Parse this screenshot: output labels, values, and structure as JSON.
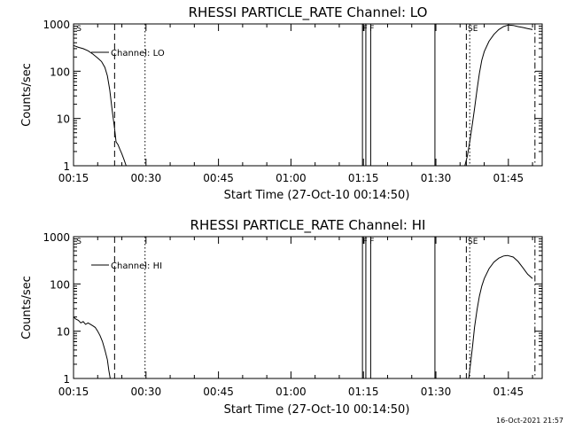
{
  "footer": {
    "timestamp": "16-Oct-2021 21:57"
  },
  "chart_data": [
    {
      "type": "line",
      "title": "RHESSI PARTICLE_RATE Channel: LO",
      "xlabel": "Start Time (27-Oct-10 00:14:50)",
      "ylabel": "Counts/sec",
      "y_scale": "log",
      "xlim_min": [
        15.0,
        112.0
      ],
      "ylim": [
        1,
        1000
      ],
      "x_ticks": [
        "00:15",
        "00:30",
        "00:45",
        "01:00",
        "01:15",
        "01:30",
        "01:45"
      ],
      "x_tick_minutes": [
        15,
        30,
        45,
        60,
        75,
        90,
        105
      ],
      "y_ticks": [
        "1",
        "10",
        "100",
        "1000"
      ],
      "y_tick_values": [
        1,
        10,
        100,
        1000
      ],
      "legend": "Channel: LO",
      "legend_position": "top-left",
      "flag_labels": [
        "S",
        "F",
        "F",
        "SE"
      ],
      "vlines_min": [
        {
          "x": 23.5,
          "style": "dashed"
        },
        {
          "x": 29.8,
          "style": "dotted"
        },
        {
          "x": 74.8,
          "style": "solid"
        },
        {
          "x": 75.5,
          "style": "solid"
        },
        {
          "x": 76.5,
          "style": "solid"
        },
        {
          "x": 89.8,
          "style": "solid"
        },
        {
          "x": 96.3,
          "style": "dashed"
        },
        {
          "x": 97.0,
          "style": "dotted"
        },
        {
          "x": 110.5,
          "style": "dashdot"
        }
      ],
      "series": [
        {
          "segments": [
            {
              "x_min": [
                15.0,
                16.0,
                17.0,
                18.0,
                19.0,
                20.0,
                20.8,
                21.5,
                22.0,
                22.5,
                23.0,
                23.5,
                23.8,
                24.2,
                24.6,
                25.0,
                25.5,
                25.9
              ],
              "y": [
                350,
                320,
                300,
                270,
                230,
                190,
                160,
                120,
                80,
                40,
                15,
                6,
                3.2,
                2.8,
                2.2,
                1.8,
                1.3,
                1.0
              ]
            },
            {
              "x_min": [
                96.0,
                96.5,
                97.0,
                97.5,
                98.0,
                98.5,
                99.0,
                99.5,
                100.0,
                101.0,
                102.0,
                103.0,
                104.0,
                105.0,
                106.0,
                107.0,
                108.0,
                109.0,
                110.0
              ],
              "y": [
                1.0,
                1.6,
                3.2,
                7,
                16,
                40,
                90,
                170,
                260,
                430,
                600,
                760,
                880,
                950,
                930,
                880,
                840,
                800,
                760
              ]
            }
          ]
        }
      ]
    },
    {
      "type": "line",
      "title": "RHESSI PARTICLE_RATE Channel: HI",
      "xlabel": "Start Time (27-Oct-10 00:14:50)",
      "ylabel": "Counts/sec",
      "y_scale": "log",
      "xlim_min": [
        15.0,
        112.0
      ],
      "ylim": [
        1,
        1000
      ],
      "x_ticks": [
        "00:15",
        "00:30",
        "00:45",
        "01:00",
        "01:15",
        "01:30",
        "01:45"
      ],
      "x_tick_minutes": [
        15,
        30,
        45,
        60,
        75,
        90,
        105
      ],
      "y_ticks": [
        "1",
        "10",
        "100",
        "1000"
      ],
      "y_tick_values": [
        1,
        10,
        100,
        1000
      ],
      "legend": "Channel: HI",
      "legend_position": "top-left",
      "flag_labels": [
        "S",
        "F",
        "F",
        "SE"
      ],
      "vlines_min": [
        {
          "x": 23.5,
          "style": "dashed"
        },
        {
          "x": 29.8,
          "style": "dotted"
        },
        {
          "x": 74.8,
          "style": "solid"
        },
        {
          "x": 75.5,
          "style": "solid"
        },
        {
          "x": 76.5,
          "style": "solid"
        },
        {
          "x": 89.8,
          "style": "solid"
        },
        {
          "x": 96.3,
          "style": "dashed"
        },
        {
          "x": 97.0,
          "style": "dotted"
        },
        {
          "x": 110.5,
          "style": "dashdot"
        }
      ],
      "series": [
        {
          "segments": [
            {
              "x_min": [
                15.0,
                15.5,
                16.0,
                16.5,
                17.0,
                17.5,
                18.0,
                18.5,
                19.0,
                19.5,
                20.0,
                20.5,
                21.0,
                21.5,
                22.0,
                22.3,
                22.6
              ],
              "y": [
                20,
                18,
                17,
                15,
                16,
                14,
                15,
                14,
                13,
                12,
                10,
                8,
                6,
                4,
                2.5,
                1.5,
                1.0
              ]
            },
            {
              "x_min": [
                96.8,
                97.2,
                97.6,
                98.0,
                98.5,
                99.0,
                99.5,
                100.0,
                101.0,
                102.0,
                103.0,
                104.0,
                104.8,
                106.0,
                107.0,
                108.0,
                109.0,
                110.0
              ],
              "y": [
                1.0,
                2.2,
                5,
                12,
                28,
                55,
                90,
                130,
                210,
                290,
                350,
                390,
                400,
                370,
                300,
                220,
                160,
                130
              ]
            }
          ]
        }
      ]
    }
  ]
}
